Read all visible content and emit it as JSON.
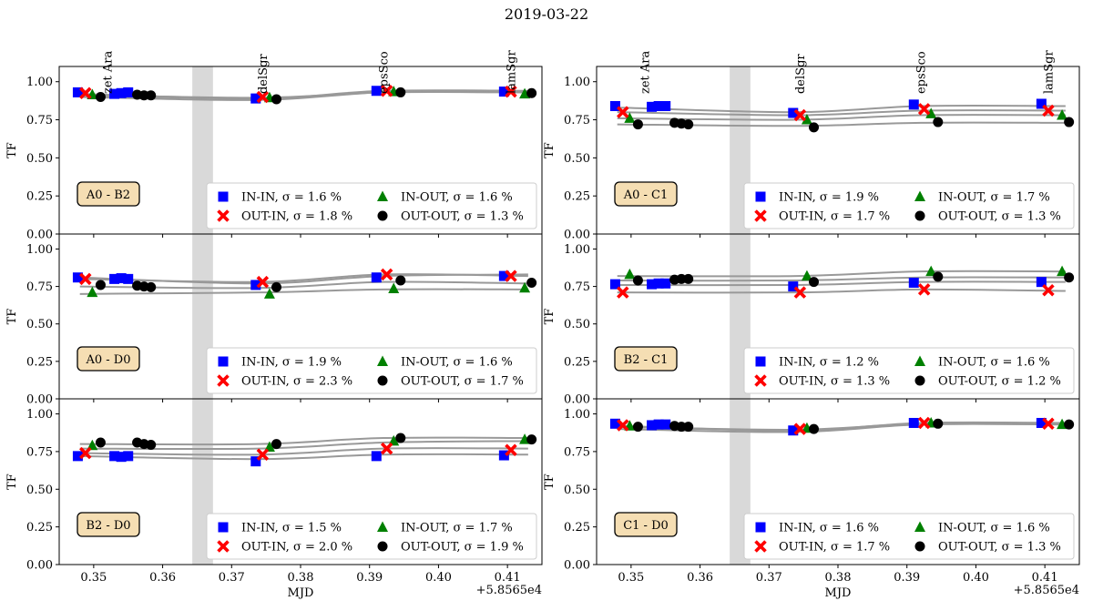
{
  "figure_title": "2019-03-22",
  "chart_data": [
    {
      "type": "scatter",
      "title": "A0 - B2",
      "ylabel": "TF",
      "xlabel": "MJD",
      "xlim": [
        0.345,
        0.415
      ],
      "ylim": [
        0.0,
        1.1
      ],
      "x_ticks": [
        "0.35",
        "0.36",
        "0.37",
        "0.38",
        "0.39",
        "0.40",
        "0.41"
      ],
      "x_offset_label": "+5.8565e4",
      "y_ticks": [
        "0.00",
        "0.25",
        "0.50",
        "0.75",
        "1.00"
      ],
      "stars": [
        {
          "name": "zet Ara",
          "x": 0.352
        },
        {
          "name": "delSgr",
          "x": 0.3745
        },
        {
          "name": "epsSco",
          "x": 0.392
        },
        {
          "name": "lamSgr",
          "x": 0.4105
        }
      ],
      "shaded_band": [
        0.3643,
        0.3673
      ],
      "legend": [
        "IN-IN, σ = 1.6 %",
        "IN-OUT, σ = 1.6 %",
        "OUT-IN, σ = 1.8 %",
        "OUT-OUT, σ = 1.3 %"
      ],
      "series": [
        {
          "name": "IN-IN",
          "color": "#0000ff",
          "marker": "square",
          "x": [
            0.3477,
            0.353,
            0.354,
            0.355,
            0.3735,
            0.391,
            0.4095
          ],
          "y": [
            0.93,
            0.92,
            0.925,
            0.93,
            0.89,
            0.94,
            0.935
          ],
          "curve": [
            0.92,
            0.89,
            0.94,
            0.94
          ]
        },
        {
          "name": "IN-OUT",
          "color": "#008000",
          "marker": "triangle",
          "x": [
            0.3498,
            0.3755,
            0.3935,
            0.4125
          ],
          "y": [
            0.915,
            0.895,
            0.935,
            0.92
          ],
          "curve": [
            0.91,
            0.89,
            0.93,
            0.935
          ]
        },
        {
          "name": "OUT-IN",
          "color": "#ff0000",
          "marker": "x",
          "x": [
            0.3488,
            0.3745,
            0.3925,
            0.4105
          ],
          "y": [
            0.925,
            0.9,
            0.94,
            0.935
          ],
          "curve": [
            0.915,
            0.895,
            0.93,
            0.93
          ]
        },
        {
          "name": "OUT-OUT",
          "color": "#000000",
          "marker": "circle",
          "x": [
            0.351,
            0.3563,
            0.3573,
            0.3583,
            0.3765,
            0.3945,
            0.4135
          ],
          "y": [
            0.9,
            0.915,
            0.91,
            0.91,
            0.885,
            0.93,
            0.925
          ],
          "curve": [
            0.9,
            0.88,
            0.93,
            0.93
          ]
        }
      ]
    },
    {
      "type": "scatter",
      "title": "A0 - D0",
      "ylabel": "TF",
      "xlabel": "MJD",
      "xlim": [
        0.345,
        0.415
      ],
      "ylim": [
        0.0,
        1.1
      ],
      "x_ticks": [
        "0.35",
        "0.36",
        "0.37",
        "0.38",
        "0.39",
        "0.40",
        "0.41"
      ],
      "x_offset_label": "+5.8565e4",
      "y_ticks": [
        "0.00",
        "0.25",
        "0.50",
        "0.75",
        "1.00"
      ],
      "stars": [],
      "shaded_band": [
        0.3643,
        0.3673
      ],
      "legend": [
        "IN-IN, σ = 1.9 %",
        "IN-OUT, σ = 1.6 %",
        "OUT-IN, σ = 2.3 %",
        "OUT-OUT, σ = 1.7 %"
      ],
      "series": [
        {
          "name": "IN-IN",
          "color": "#0000ff",
          "marker": "square",
          "x": [
            0.3477,
            0.353,
            0.354,
            0.355,
            0.3735,
            0.391,
            0.4095
          ],
          "y": [
            0.81,
            0.8,
            0.805,
            0.8,
            0.76,
            0.81,
            0.82
          ],
          "curve": [
            0.81,
            0.77,
            0.82,
            0.83
          ]
        },
        {
          "name": "IN-OUT",
          "color": "#008000",
          "marker": "triangle",
          "x": [
            0.3498,
            0.3755,
            0.3935,
            0.4125
          ],
          "y": [
            0.71,
            0.7,
            0.735,
            0.74
          ],
          "curve": [
            0.7,
            0.71,
            0.73,
            0.73
          ]
        },
        {
          "name": "OUT-IN",
          "color": "#ff0000",
          "marker": "x",
          "x": [
            0.3488,
            0.3745,
            0.3925,
            0.4105
          ],
          "y": [
            0.8,
            0.78,
            0.83,
            0.82
          ],
          "curve": [
            0.8,
            0.78,
            0.83,
            0.82
          ]
        },
        {
          "name": "OUT-OUT",
          "color": "#000000",
          "marker": "circle",
          "x": [
            0.351,
            0.3563,
            0.3573,
            0.3583,
            0.3765,
            0.3945,
            0.4135
          ],
          "y": [
            0.76,
            0.755,
            0.75,
            0.745,
            0.745,
            0.79,
            0.775
          ],
          "curve": [
            0.75,
            0.74,
            0.78,
            0.77
          ]
        }
      ]
    },
    {
      "type": "scatter",
      "title": "B2 - D0",
      "ylabel": "TF",
      "xlabel": "MJD",
      "xlim": [
        0.345,
        0.415
      ],
      "ylim": [
        0.0,
        1.1
      ],
      "x_ticks": [
        "0.35",
        "0.36",
        "0.37",
        "0.38",
        "0.39",
        "0.40",
        "0.41"
      ],
      "x_offset_label": "+5.8565e4",
      "y_ticks": [
        "0.00",
        "0.25",
        "0.50",
        "0.75",
        "1.00"
      ],
      "stars": [],
      "shaded_band": [
        0.3643,
        0.3673
      ],
      "legend": [
        "IN-IN, σ = 1.5 %",
        "IN-OUT, σ = 1.7 %",
        "OUT-IN, σ = 2.0 %",
        "OUT-OUT, σ = 1.9 %"
      ],
      "series": [
        {
          "name": "IN-IN",
          "color": "#0000ff",
          "marker": "square",
          "x": [
            0.3477,
            0.353,
            0.354,
            0.355,
            0.3735,
            0.391,
            0.4095
          ],
          "y": [
            0.72,
            0.72,
            0.715,
            0.72,
            0.685,
            0.72,
            0.725
          ],
          "curve": [
            0.72,
            0.7,
            0.73,
            0.73
          ]
        },
        {
          "name": "IN-OUT",
          "color": "#008000",
          "marker": "triangle",
          "x": [
            0.3498,
            0.3755,
            0.3935,
            0.4125
          ],
          "y": [
            0.79,
            0.78,
            0.82,
            0.83
          ],
          "curve": [
            0.77,
            0.77,
            0.81,
            0.82
          ]
        },
        {
          "name": "OUT-IN",
          "color": "#ff0000",
          "marker": "x",
          "x": [
            0.3488,
            0.3745,
            0.3925,
            0.4105
          ],
          "y": [
            0.74,
            0.73,
            0.77,
            0.76
          ],
          "curve": [
            0.74,
            0.73,
            0.77,
            0.77
          ]
        },
        {
          "name": "OUT-OUT",
          "color": "#000000",
          "marker": "circle",
          "x": [
            0.351,
            0.3563,
            0.3573,
            0.3583,
            0.3765,
            0.3945,
            0.4135
          ],
          "y": [
            0.81,
            0.81,
            0.8,
            0.795,
            0.8,
            0.84,
            0.83
          ],
          "curve": [
            0.8,
            0.8,
            0.84,
            0.84
          ]
        }
      ]
    },
    {
      "type": "scatter",
      "title": "A0 - C1",
      "ylabel": "TF",
      "xlabel": "MJD",
      "xlim": [
        0.345,
        0.415
      ],
      "ylim": [
        0.0,
        1.1
      ],
      "x_ticks": [
        "0.35",
        "0.36",
        "0.37",
        "0.38",
        "0.39",
        "0.40",
        "0.41"
      ],
      "x_offset_label": "+5.8565e4",
      "y_ticks": [
        "0.00",
        "0.25",
        "0.50",
        "0.75",
        "1.00"
      ],
      "stars": [
        {
          "name": "zet Ara",
          "x": 0.352
        },
        {
          "name": "delSgr",
          "x": 0.3745
        },
        {
          "name": "epsSco",
          "x": 0.392
        },
        {
          "name": "lamSgr",
          "x": 0.4105
        }
      ],
      "shaded_band": [
        0.3643,
        0.3673
      ],
      "legend": [
        "IN-IN, σ = 1.9 %",
        "IN-OUT, σ = 1.7 %",
        "OUT-IN, σ = 1.7 %",
        "OUT-OUT, σ = 1.3 %"
      ],
      "series": [
        {
          "name": "IN-IN",
          "color": "#0000ff",
          "marker": "square",
          "x": [
            0.3477,
            0.353,
            0.354,
            0.355,
            0.3735,
            0.391,
            0.4095
          ],
          "y": [
            0.84,
            0.835,
            0.84,
            0.84,
            0.795,
            0.85,
            0.855
          ],
          "curve": [
            0.83,
            0.8,
            0.84,
            0.84
          ]
        },
        {
          "name": "IN-OUT",
          "color": "#008000",
          "marker": "triangle",
          "x": [
            0.3498,
            0.3755,
            0.3935,
            0.4125
          ],
          "y": [
            0.76,
            0.75,
            0.79,
            0.78
          ],
          "curve": [
            0.76,
            0.75,
            0.78,
            0.78
          ]
        },
        {
          "name": "OUT-IN",
          "color": "#ff0000",
          "marker": "x",
          "x": [
            0.3488,
            0.3745,
            0.3925,
            0.4105
          ],
          "y": [
            0.8,
            0.78,
            0.82,
            0.81
          ],
          "curve": [
            0.8,
            0.78,
            0.81,
            0.81
          ]
        },
        {
          "name": "OUT-OUT",
          "color": "#000000",
          "marker": "circle",
          "x": [
            0.351,
            0.3563,
            0.3573,
            0.3583,
            0.3765,
            0.3945,
            0.4135
          ],
          "y": [
            0.72,
            0.73,
            0.725,
            0.72,
            0.7,
            0.735,
            0.735
          ],
          "curve": [
            0.72,
            0.71,
            0.73,
            0.73
          ]
        }
      ]
    },
    {
      "type": "scatter",
      "title": "B2 - C1",
      "ylabel": "TF",
      "xlabel": "MJD",
      "xlim": [
        0.345,
        0.415
      ],
      "ylim": [
        0.0,
        1.1
      ],
      "x_ticks": [
        "0.35",
        "0.36",
        "0.37",
        "0.38",
        "0.39",
        "0.40",
        "0.41"
      ],
      "x_offset_label": "+5.8565e4",
      "y_ticks": [
        "0.00",
        "0.25",
        "0.50",
        "0.75",
        "1.00"
      ],
      "stars": [],
      "shaded_band": [
        0.3643,
        0.3673
      ],
      "legend": [
        "IN-IN, σ = 1.2 %",
        "IN-OUT, σ = 1.6 %",
        "OUT-IN, σ = 1.3 %",
        "OUT-OUT, σ = 1.2 %"
      ],
      "series": [
        {
          "name": "IN-IN",
          "color": "#0000ff",
          "marker": "square",
          "x": [
            0.3477,
            0.353,
            0.354,
            0.355,
            0.3735,
            0.391,
            0.4095
          ],
          "y": [
            0.765,
            0.765,
            0.77,
            0.77,
            0.75,
            0.775,
            0.78
          ],
          "curve": [
            0.76,
            0.76,
            0.78,
            0.78
          ]
        },
        {
          "name": "IN-OUT",
          "color": "#008000",
          "marker": "triangle",
          "x": [
            0.3498,
            0.3755,
            0.3935,
            0.4125
          ],
          "y": [
            0.83,
            0.82,
            0.85,
            0.85
          ],
          "curve": [
            0.82,
            0.82,
            0.85,
            0.85
          ]
        },
        {
          "name": "OUT-IN",
          "color": "#ff0000",
          "marker": "x",
          "x": [
            0.3488,
            0.3745,
            0.3925,
            0.4105
          ],
          "y": [
            0.71,
            0.71,
            0.73,
            0.725
          ],
          "curve": [
            0.71,
            0.71,
            0.73,
            0.72
          ]
        },
        {
          "name": "OUT-OUT",
          "color": "#000000",
          "marker": "circle",
          "x": [
            0.351,
            0.3563,
            0.3573,
            0.3583,
            0.3765,
            0.3945,
            0.4135
          ],
          "y": [
            0.79,
            0.795,
            0.8,
            0.8,
            0.78,
            0.815,
            0.81
          ],
          "curve": [
            0.79,
            0.79,
            0.81,
            0.81
          ]
        }
      ]
    },
    {
      "type": "scatter",
      "title": "C1 - D0",
      "ylabel": "TF",
      "xlabel": "MJD",
      "xlim": [
        0.345,
        0.415
      ],
      "ylim": [
        0.0,
        1.1
      ],
      "x_ticks": [
        "0.35",
        "0.36",
        "0.37",
        "0.38",
        "0.39",
        "0.40",
        "0.41"
      ],
      "x_offset_label": "+5.8565e4",
      "y_ticks": [
        "0.00",
        "0.25",
        "0.50",
        "0.75",
        "1.00"
      ],
      "stars": [],
      "shaded_band": [
        0.3643,
        0.3673
      ],
      "legend": [
        "IN-IN, σ = 1.6 %",
        "IN-OUT, σ = 1.6 %",
        "OUT-IN, σ = 1.7 %",
        "OUT-OUT, σ = 1.3 %"
      ],
      "series": [
        {
          "name": "IN-IN",
          "color": "#0000ff",
          "marker": "square",
          "x": [
            0.3477,
            0.353,
            0.354,
            0.355,
            0.3735,
            0.391,
            0.4095
          ],
          "y": [
            0.935,
            0.925,
            0.93,
            0.93,
            0.89,
            0.94,
            0.94
          ],
          "curve": [
            0.92,
            0.89,
            0.94,
            0.94
          ]
        },
        {
          "name": "IN-OUT",
          "color": "#008000",
          "marker": "triangle",
          "x": [
            0.3498,
            0.3755,
            0.3935,
            0.4125
          ],
          "y": [
            0.92,
            0.905,
            0.94,
            0.93
          ],
          "curve": [
            0.915,
            0.895,
            0.935,
            0.935
          ]
        },
        {
          "name": "OUT-IN",
          "color": "#ff0000",
          "marker": "x",
          "x": [
            0.3488,
            0.3745,
            0.3925,
            0.4105
          ],
          "y": [
            0.925,
            0.9,
            0.94,
            0.935
          ],
          "curve": [
            0.915,
            0.89,
            0.93,
            0.93
          ]
        },
        {
          "name": "OUT-OUT",
          "color": "#000000",
          "marker": "circle",
          "x": [
            0.351,
            0.3563,
            0.3573,
            0.3583,
            0.3765,
            0.3945,
            0.4135
          ],
          "y": [
            0.915,
            0.92,
            0.915,
            0.915,
            0.9,
            0.935,
            0.93
          ],
          "curve": [
            0.9,
            0.88,
            0.93,
            0.93
          ]
        }
      ]
    }
  ]
}
